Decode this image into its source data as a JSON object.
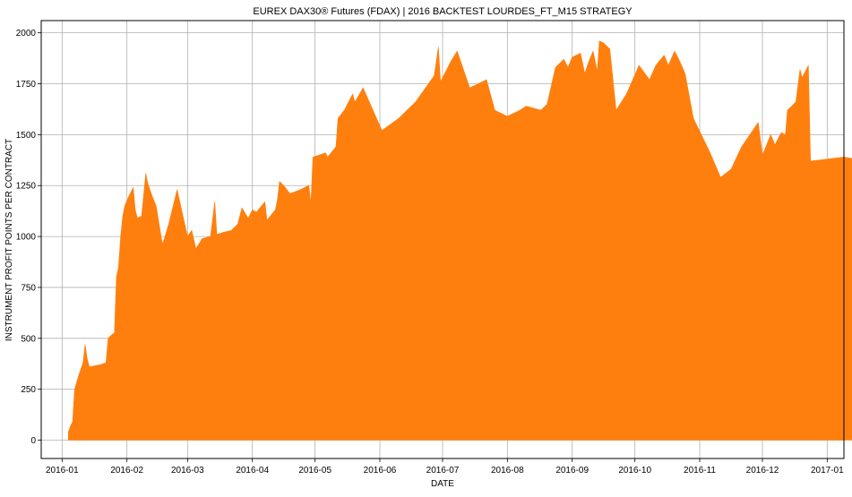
{
  "chart_data": {
    "type": "area",
    "title": "EUREX DAX30® Futures (FDAX) | 2016 BACKTEST LOURDES_FT_M15 STRATEGY",
    "xlabel": "DATE",
    "ylabel": "INSTRUMENT PROFIT POINTS PER CONTRACT",
    "x_ticks": [
      "2016-01",
      "2016-02",
      "2016-03",
      "2016-04",
      "2016-05",
      "2016-06",
      "2016-07",
      "2016-08",
      "2016-09",
      "2016-10",
      "2016-11",
      "2016-12",
      "2017-01"
    ],
    "y_ticks": [
      0,
      250,
      500,
      750,
      1000,
      1250,
      1500,
      1750,
      2000
    ],
    "xlim": [
      "2015-12-22",
      "2017-01-09"
    ],
    "ylim": [
      -90,
      2060
    ],
    "grid": true,
    "series": [
      {
        "color": "#ff7f0e",
        "points": [
          [
            "2016-01-04",
            0
          ],
          [
            "2016-01-04",
            40
          ],
          [
            "2016-01-05",
            70
          ],
          [
            "2016-01-06",
            90
          ],
          [
            "2016-01-07",
            250
          ],
          [
            "2016-01-09",
            320
          ],
          [
            "2016-01-11",
            380
          ],
          [
            "2016-01-12",
            470
          ],
          [
            "2016-01-13",
            400
          ],
          [
            "2016-01-14",
            360
          ],
          [
            "2016-01-19",
            370
          ],
          [
            "2016-01-22",
            380
          ],
          [
            "2016-01-23",
            500
          ],
          [
            "2016-01-25",
            520
          ],
          [
            "2016-01-26",
            525
          ],
          [
            "2016-01-27",
            800
          ],
          [
            "2016-01-28",
            850
          ],
          [
            "2016-01-29",
            1000
          ],
          [
            "2016-01-30",
            1100
          ],
          [
            "2016-01-31",
            1150
          ],
          [
            "2016-02-02",
            1200
          ],
          [
            "2016-02-04",
            1240
          ],
          [
            "2016-02-05",
            1130
          ],
          [
            "2016-02-06",
            1090
          ],
          [
            "2016-02-08",
            1100
          ],
          [
            "2016-02-09",
            1200
          ],
          [
            "2016-02-10",
            1310
          ],
          [
            "2016-02-11",
            1260
          ],
          [
            "2016-02-13",
            1200
          ],
          [
            "2016-02-15",
            1150
          ],
          [
            "2016-02-18",
            960
          ],
          [
            "2016-02-21",
            1060
          ],
          [
            "2016-02-25",
            1230
          ],
          [
            "2016-03-01",
            1000
          ],
          [
            "2016-03-03",
            1030
          ],
          [
            "2016-03-05",
            940
          ],
          [
            "2016-03-08",
            990
          ],
          [
            "2016-03-12",
            1000
          ],
          [
            "2016-03-14",
            1170
          ],
          [
            "2016-03-15",
            1010
          ],
          [
            "2016-03-18",
            1020
          ],
          [
            "2016-03-22",
            1030
          ],
          [
            "2016-03-25",
            1060
          ],
          [
            "2016-03-27",
            1140
          ],
          [
            "2016-03-30",
            1090
          ],
          [
            "2016-04-01",
            1130
          ],
          [
            "2016-04-03",
            1120
          ],
          [
            "2016-04-07",
            1170
          ],
          [
            "2016-04-08",
            1080
          ],
          [
            "2016-04-12",
            1130
          ],
          [
            "2016-04-13",
            1180
          ],
          [
            "2016-04-14",
            1270
          ],
          [
            "2016-04-16",
            1250
          ],
          [
            "2016-04-19",
            1210
          ],
          [
            "2016-04-24",
            1230
          ],
          [
            "2016-04-28",
            1250
          ],
          [
            "2016-04-29",
            1160
          ],
          [
            "2016-04-30",
            1390
          ],
          [
            "2016-05-06",
            1410
          ],
          [
            "2016-05-07",
            1390
          ],
          [
            "2016-05-11",
            1440
          ],
          [
            "2016-05-12",
            1580
          ],
          [
            "2016-05-15",
            1620
          ],
          [
            "2016-05-19",
            1700
          ],
          [
            "2016-05-20",
            1660
          ],
          [
            "2016-05-24",
            1730
          ],
          [
            "2016-06-02",
            1520
          ],
          [
            "2016-06-10",
            1580
          ],
          [
            "2016-06-18",
            1660
          ],
          [
            "2016-06-27",
            1790
          ],
          [
            "2016-06-29",
            1930
          ],
          [
            "2016-06-30",
            1760
          ],
          [
            "2016-07-05",
            1860
          ],
          [
            "2016-07-08",
            1910
          ],
          [
            "2016-07-14",
            1730
          ],
          [
            "2016-07-22",
            1770
          ],
          [
            "2016-07-26",
            1620
          ],
          [
            "2016-08-01",
            1590
          ],
          [
            "2016-08-07",
            1620
          ],
          [
            "2016-08-10",
            1640
          ],
          [
            "2016-08-17",
            1620
          ],
          [
            "2016-08-20",
            1650
          ],
          [
            "2016-08-24",
            1830
          ],
          [
            "2016-08-28",
            1870
          ],
          [
            "2016-08-30",
            1830
          ],
          [
            "2016-09-01",
            1880
          ],
          [
            "2016-09-05",
            1900
          ],
          [
            "2016-09-07",
            1800
          ],
          [
            "2016-09-09",
            1860
          ],
          [
            "2016-09-11",
            1910
          ],
          [
            "2016-09-13",
            1810
          ],
          [
            "2016-09-14",
            1960
          ],
          [
            "2016-09-16",
            1950
          ],
          [
            "2016-09-19",
            1920
          ],
          [
            "2016-09-22",
            1620
          ],
          [
            "2016-09-27",
            1700
          ],
          [
            "2016-10-03",
            1840
          ],
          [
            "2016-10-08",
            1770
          ],
          [
            "2016-10-11",
            1840
          ],
          [
            "2016-10-15",
            1890
          ],
          [
            "2016-10-17",
            1840
          ],
          [
            "2016-10-20",
            1910
          ],
          [
            "2016-10-22",
            1870
          ],
          [
            "2016-10-25",
            1800
          ],
          [
            "2016-10-29",
            1580
          ],
          [
            "2016-11-06",
            1410
          ],
          [
            "2016-11-11",
            1290
          ],
          [
            "2016-11-16",
            1330
          ],
          [
            "2016-11-21",
            1440
          ],
          [
            "2016-11-27",
            1530
          ],
          [
            "2016-11-29",
            1560
          ],
          [
            "2016-12-01",
            1400
          ],
          [
            "2016-12-03",
            1450
          ],
          [
            "2016-12-05",
            1500
          ],
          [
            "2016-12-07",
            1450
          ],
          [
            "2016-12-10",
            1510
          ],
          [
            "2016-12-12",
            1500
          ],
          [
            "2016-12-13",
            1620
          ],
          [
            "2016-12-17",
            1660
          ],
          [
            "2016-12-19",
            1820
          ],
          [
            "2016-12-20",
            1780
          ],
          [
            "2016-12-23",
            1840
          ],
          [
            "2016-12-24",
            1370
          ],
          [
            "2017-01-09",
            1390
          ],
          [
            "2017-01-15",
            1380
          ],
          [
            "2017-01-16",
            1410
          ],
          [
            "2017-01-16",
            0
          ]
        ]
      }
    ]
  }
}
